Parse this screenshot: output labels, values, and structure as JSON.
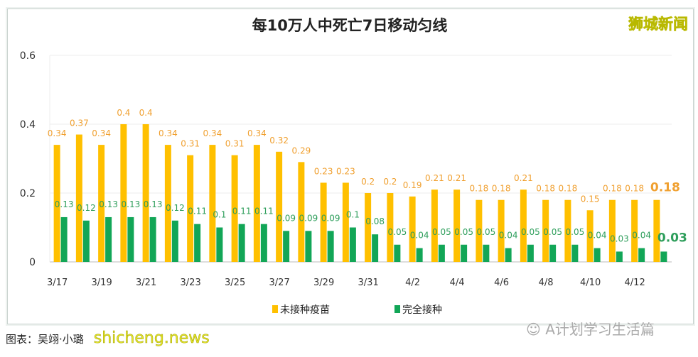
{
  "chart_data": {
    "type": "bar",
    "title": "每10万人中死亡7日移动匀线",
    "categories": [
      "3/17",
      "3/18",
      "3/19",
      "3/20",
      "3/21",
      "3/22",
      "3/23",
      "3/24",
      "3/25",
      "3/26",
      "3/27",
      "3/28",
      "3/29",
      "3/30",
      "3/31",
      "4/1",
      "4/2",
      "4/3",
      "4/4",
      "4/5",
      "4/6",
      "4/7",
      "4/8",
      "4/9",
      "4/10",
      "4/11",
      "4/12",
      "4/13"
    ],
    "tick_labels": [
      "3/17",
      "3/19",
      "3/21",
      "3/23",
      "3/25",
      "3/27",
      "3/29",
      "3/31",
      "4/2",
      "4/4",
      "4/6",
      "4/8",
      "4/10",
      "4/12"
    ],
    "series": [
      {
        "name": "未接种疫苗",
        "color": "#FFC000",
        "label_color": "#F0A030",
        "values": [
          0.34,
          0.37,
          0.34,
          0.4,
          0.4,
          0.34,
          0.31,
          0.34,
          0.31,
          0.34,
          0.32,
          0.29,
          0.23,
          0.23,
          0.2,
          0.2,
          0.19,
          0.21,
          0.21,
          0.18,
          0.18,
          0.21,
          0.18,
          0.18,
          0.15,
          0.18,
          0.18,
          0.18
        ]
      },
      {
        "name": "完全接种",
        "color": "#12A657",
        "label_color": "#2E9E5B",
        "values": [
          0.13,
          0.12,
          0.13,
          0.13,
          0.13,
          0.12,
          0.11,
          0.1,
          0.11,
          0.11,
          0.09,
          0.09,
          0.09,
          0.1,
          0.08,
          0.05,
          0.04,
          0.05,
          0.05,
          0.05,
          0.04,
          0.05,
          0.05,
          0.05,
          0.04,
          0.03,
          0.04,
          0.03
        ]
      }
    ],
    "yticks": [
      "0",
      "0.2",
      "0.4",
      "0.6"
    ],
    "ylim": [
      0,
      0.6
    ],
    "grid": true,
    "legend": "bottom"
  },
  "credit": "图表：吴翊·小璐",
  "watermarks": {
    "top_right": "狮城新闻",
    "bottom_left": "shicheng.news",
    "bottom_right": "A计划学习生活篇"
  }
}
